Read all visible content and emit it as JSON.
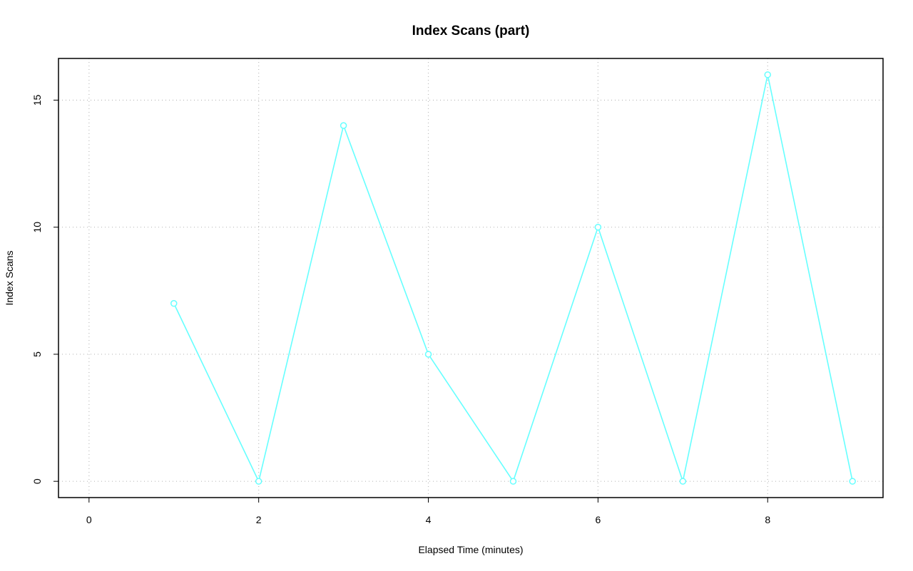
{
  "chart_data": {
    "type": "line",
    "title": "Index Scans (part)",
    "x_label": "Elapsed Time (minutes)",
    "y_label": "Index Scans",
    "x": [
      1,
      2,
      3,
      4,
      5,
      6,
      7,
      8,
      9
    ],
    "series": [
      {
        "name": "Index Scans",
        "color": "#66ffff",
        "values": [
          7,
          0,
          14,
          5,
          0,
          10,
          0,
          16,
          0
        ]
      }
    ],
    "xlim": [
      -0.36,
      9.36
    ],
    "xticks": [
      0,
      2,
      4,
      6,
      8
    ],
    "ylim": [
      -0.64,
      16.64
    ],
    "yticks": [
      0,
      5,
      10,
      15
    ],
    "grid": true
  }
}
